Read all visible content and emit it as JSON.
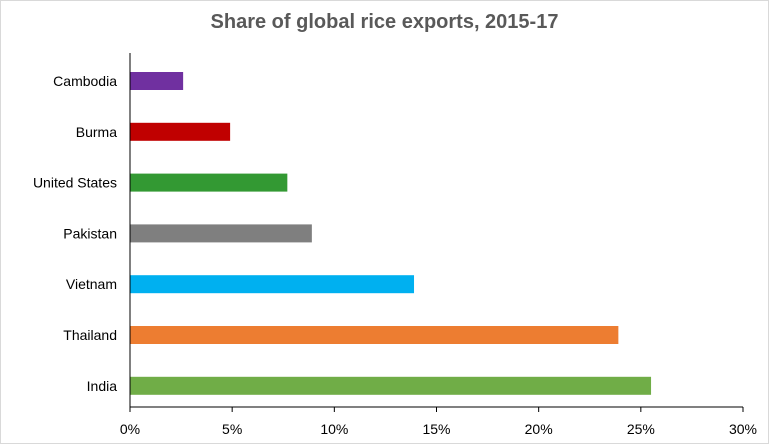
{
  "chart_data": {
    "type": "bar",
    "orientation": "horizontal",
    "title": "Share of global rice exports, 2015-17",
    "xlabel": "",
    "ylabel": "",
    "categories": [
      "Cambodia",
      "Burma",
      "United States",
      "Pakistan",
      "Vietnam",
      "Thailand",
      "India"
    ],
    "values": [
      2.6,
      4.9,
      7.7,
      8.9,
      13.9,
      23.9,
      25.5
    ],
    "unit": "%",
    "colors": [
      "#7030a0",
      "#c00000",
      "#339933",
      "#7f7f7f",
      "#00b0f0",
      "#ed7d31",
      "#70ad47"
    ],
    "xlim": [
      0,
      30
    ],
    "x_ticks": [
      "0%",
      "5%",
      "10%",
      "15%",
      "20%",
      "25%",
      "30%"
    ],
    "x_tick_values": [
      0,
      5,
      10,
      15,
      20,
      25,
      30
    ],
    "grid": false,
    "legend": "none"
  }
}
